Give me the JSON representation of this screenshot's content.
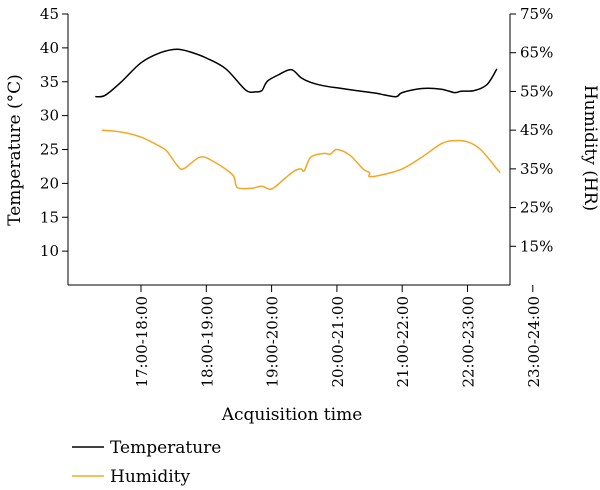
{
  "chart_data": {
    "type": "line",
    "title": "",
    "xlabel": "Acquisition time",
    "ylabel": "Temperature (°C)",
    "y2label": "Humidity (HR)",
    "categories": [
      "17:00-18:00",
      "18:00-19:00",
      "19:00-20:00",
      "20:00-21:00",
      "21:00-22:00",
      "22:00-23:00",
      "23:00-24:00"
    ],
    "ylim": [
      5,
      45
    ],
    "yticks": [
      "10",
      "15",
      "20",
      "25",
      "30",
      "35",
      "40",
      "45"
    ],
    "y2lim": [
      5,
      75
    ],
    "y2ticks": [
      "15%",
      "25%",
      "35%",
      "45%",
      "55%",
      "65%",
      "75%"
    ],
    "grid": false,
    "legend": "bottom-left",
    "series": [
      {
        "name": "Temperature",
        "axis": "left",
        "color": "#000000",
        "x": [
          -0.7,
          -0.55,
          -0.3,
          0,
          0.3,
          0.55,
          0.75,
          1.0,
          1.3,
          1.6,
          1.75,
          1.85,
          1.9,
          1.95,
          2.1,
          2.3,
          2.45,
          2.6,
          2.8,
          3.0,
          3.3,
          3.6,
          3.9,
          4.0,
          4.3,
          4.6,
          4.8,
          4.9,
          5.1,
          5.3,
          5.45
        ],
        "values": [
          32.8,
          33.0,
          35.0,
          37.8,
          39.3,
          39.8,
          39.4,
          38.5,
          36.9,
          33.8,
          33.5,
          33.7,
          34.6,
          35.2,
          36.0,
          36.8,
          35.6,
          34.9,
          34.4,
          34.1,
          33.7,
          33.3,
          32.8,
          33.4,
          34.0,
          33.9,
          33.4,
          33.6,
          33.7,
          34.6,
          36.9
        ]
      },
      {
        "name": "Humidity",
        "axis": "right",
        "color": "#f5a623",
        "x": [
          -0.6,
          -0.3,
          0,
          0.3,
          0.4,
          0.55,
          0.65,
          0.9,
          1.1,
          1.4,
          1.45,
          1.5,
          1.7,
          1.85,
          2.0,
          2.2,
          2.35,
          2.45,
          2.5,
          2.6,
          2.8,
          2.9,
          3.0,
          3.2,
          3.4,
          3.5,
          3.5,
          3.7,
          4.0,
          4.3,
          4.6,
          4.8,
          5.0,
          5.2,
          5.45,
          5.5
        ],
        "values": [
          45.0,
          44.5,
          43.2,
          40.7,
          39.5,
          36.0,
          35.0,
          38.0,
          37.0,
          33.5,
          31.0,
          30.0,
          30.0,
          30.5,
          29.8,
          32.5,
          34.5,
          35.0,
          34.5,
          38.0,
          39.0,
          38.8,
          40.0,
          38.5,
          35.0,
          34.0,
          33.0,
          33.5,
          35.0,
          38.0,
          41.5,
          42.3,
          42.0,
          40.0,
          35.0,
          34.0
        ]
      }
    ]
  }
}
